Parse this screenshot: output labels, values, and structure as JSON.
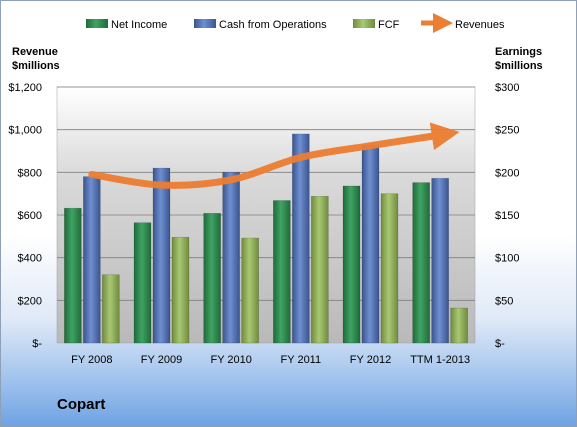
{
  "chart_data": {
    "type": "bar",
    "categories": [
      "FY 2008",
      "FY 2009",
      "FY 2010",
      "FY 2011",
      "FY 2012",
      "TTM 1-2013"
    ],
    "series": [
      {
        "name": "Net Income",
        "axis": "right",
        "color": "#2e8b4e",
        "values": [
          158,
          141,
          152,
          167,
          184,
          188
        ]
      },
      {
        "name": "Cash from Operations",
        "axis": "right",
        "color": "#4f6fb3",
        "values": [
          195,
          205,
          200,
          245,
          232,
          193
        ]
      },
      {
        "name": "FCF",
        "axis": "right",
        "color": "#8fb05a",
        "values": [
          80,
          124,
          123,
          172,
          175,
          41
        ]
      },
      {
        "name": "Revenues",
        "axis": "left",
        "type": "line",
        "color": "#ed7d31",
        "values": [
          790,
          740,
          765,
          870,
          925,
          975
        ]
      }
    ],
    "left_axis": {
      "title_line1": "Revenue",
      "title_line2": "$millions",
      "ylim": [
        0,
        1200
      ],
      "tick_labels": [
        "$-",
        "$200",
        "$400",
        "$600",
        "$800",
        "$1,000",
        "$1,200"
      ]
    },
    "right_axis": {
      "title_line1": "Earnings",
      "title_line2": "$millions",
      "ylim": [
        0,
        300
      ],
      "tick_labels": [
        "$-",
        "$50",
        "$100",
        "$150",
        "$200",
        "$250",
        "$300"
      ]
    },
    "legend": [
      "Net Income",
      "Cash from Operations",
      "FCF",
      "Revenues"
    ],
    "legend_position": "top",
    "grid": true,
    "company": "Copart"
  }
}
